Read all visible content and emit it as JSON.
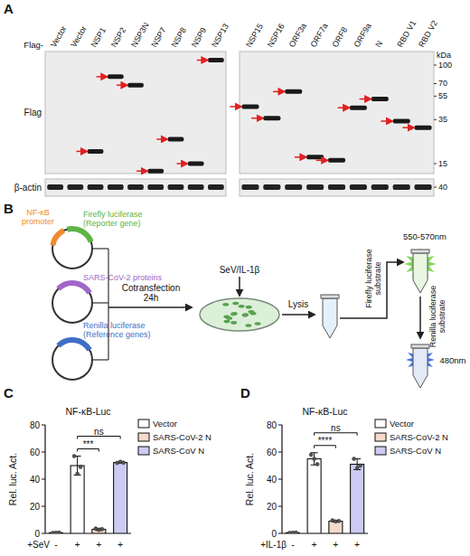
{
  "panel_a": {
    "label": "A",
    "prefix": "Flag-",
    "rows": [
      "Flag",
      "β-actin"
    ],
    "kda_label": "kDa",
    "kda_markers": [
      100,
      70,
      55,
      35,
      15
    ],
    "actin_marker": 40,
    "blots": [
      {
        "lanes": [
          "Vector",
          "Vector",
          "NSP1",
          "NSP2",
          "NSP3N",
          "NSP7",
          "NSP8",
          "NSP9",
          "NSP13"
        ],
        "bands": [
          null,
          null,
          19,
          80,
          68,
          13,
          24,
          15,
          110
        ]
      },
      {
        "lanes": [
          "NSP15",
          "NSP16",
          "ORF3a",
          "ORF7a",
          "ORF8",
          "ORF9a",
          "N",
          "RBD V1",
          "RBD V2"
        ],
        "bands": [
          45,
          36,
          60,
          17,
          16,
          44,
          52,
          34,
          30
        ]
      }
    ]
  },
  "panel_b": {
    "label": "B",
    "plasmids": [
      {
        "parts": [
          {
            "lines": [
              "NF-κB",
              "promoter"
            ],
            "color": "#f08a30"
          },
          {
            "lines": [
              "Firefly luciferase",
              "(Reporter gene)"
            ],
            "color": "#5cb545"
          }
        ]
      },
      {
        "parts": [
          {
            "lines": [
              "SARS-CoV-2 proteins"
            ],
            "color": "#a066c8"
          }
        ]
      },
      {
        "parts": [
          {
            "lines": [
              "Renilla luciferase",
              "(Reference genes)"
            ],
            "color": "#3f6fc6"
          }
        ]
      }
    ],
    "cotransfection": [
      "Cotransfection",
      "24h"
    ],
    "stimulus": "SeV/IL-1β",
    "lysis": "Lysis",
    "substrate1": [
      "Firefly luciferase",
      "substrate"
    ],
    "wavelength1": "550-570nm",
    "substrate2": [
      "Renilla luciferase",
      "substrate"
    ],
    "wavelength2": "480nm"
  },
  "panel_labels": [
    "C",
    "D"
  ],
  "chart_data": [
    {
      "type": "bar",
      "title": "NF-κB-Luc",
      "y_label": "Rel. luc. Act.",
      "x_label": "+SeV",
      "categories": [
        "-",
        "+",
        "+",
        "+"
      ],
      "series": [
        {
          "name": "Vector",
          "color": "#ffffff",
          "values": [
            0.5,
            50,
            null,
            null
          ],
          "errors": [
            0.3,
            7,
            null,
            null
          ],
          "points": [
            [
              0.4,
              0.5,
              0.6
            ],
            [
              57,
              44,
              49
            ],
            null,
            null
          ]
        },
        {
          "name": "SARS-CoV-2 N",
          "color": "#f7d9cc",
          "values": [
            null,
            null,
            3,
            null
          ],
          "errors": [
            null,
            null,
            0.8,
            null
          ],
          "points": [
            null,
            null,
            [
              3.6,
              2.6,
              3.1
            ],
            null
          ]
        },
        {
          "name": "SARS-CoV N",
          "color": "#cdcbf2",
          "values": [
            null,
            null,
            null,
            52.3
          ],
          "errors": [
            null,
            null,
            null,
            0.4
          ],
          "points": [
            null,
            null,
            null,
            [
              52,
              52.8,
              52.1
            ]
          ]
        }
      ],
      "ylim": [
        0,
        80
      ],
      "yticks": [
        0,
        20,
        40,
        60,
        80
      ],
      "legend": "right",
      "annotations": [
        {
          "text": "***",
          "from": 1,
          "to": 2
        },
        {
          "text": "ns",
          "from": 1,
          "to": 3
        }
      ]
    },
    {
      "type": "bar",
      "title": "NF-κB-Luc",
      "y_label": "Rel. luc. Act.",
      "x_label": "+IL-1β",
      "categories": [
        "-",
        "+",
        "+",
        "+"
      ],
      "series": [
        {
          "name": "Vector",
          "color": "#ffffff",
          "values": [
            0.5,
            55,
            null,
            null
          ],
          "errors": [
            0.3,
            4.5,
            null,
            null
          ],
          "points": [
            [
              0.4,
              0.5,
              0.6
            ],
            [
              58,
              55,
              51
            ],
            null,
            null
          ]
        },
        {
          "name": "SARS-CoV-2 N",
          "color": "#f7d9cc",
          "values": [
            null,
            null,
            9,
            null
          ],
          "errors": [
            null,
            null,
            0.6,
            null
          ],
          "points": [
            null,
            null,
            [
              9.6,
              8.8,
              9.1
            ],
            null
          ]
        },
        {
          "name": "SARS-CoV N",
          "color": "#cdcbf2",
          "values": [
            null,
            null,
            null,
            51
          ],
          "errors": [
            null,
            null,
            null,
            4
          ],
          "points": [
            null,
            null,
            null,
            [
              55,
              48,
              50
            ]
          ]
        }
      ],
      "ylim": [
        0,
        80
      ],
      "yticks": [
        0,
        20,
        40,
        60,
        80
      ],
      "legend": "right",
      "annotations": [
        {
          "text": "****",
          "from": 1,
          "to": 2
        },
        {
          "text": "ns",
          "from": 1,
          "to": 3
        }
      ]
    }
  ]
}
